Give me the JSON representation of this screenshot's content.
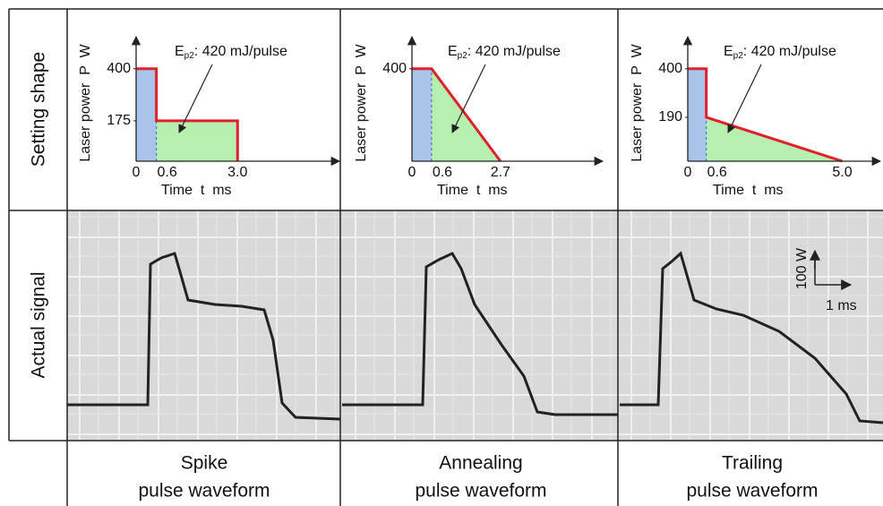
{
  "chart_data": [
    {
      "type": "line",
      "ylabel": "Laser power  P  W",
      "xlabel": "Time  t  ms",
      "annotation": {
        "symbol": "E",
        "subscript": "p2",
        "text": ": 420 mJ/pulse"
      },
      "x": [
        0,
        0.6,
        0.6,
        3,
        3
      ],
      "series": [
        {
          "color": "#e0202a",
          "values": [
            400,
            400,
            175,
            175,
            0
          ]
        }
      ],
      "xlim": [
        0,
        5.8
      ],
      "ylim": [
        0,
        500
      ],
      "xticks": [
        0,
        0.6,
        {
          "value": 3,
          "label": "3.0"
        }
      ],
      "yticks": [
        175,
        400
      ]
    },
    {
      "type": "line",
      "ylabel": "Laser power  P  W",
      "xlabel": "Time  t  ms",
      "annotation": {
        "symbol": "E",
        "subscript": "p2",
        "text": ": 420 mJ/pulse"
      },
      "x": [
        0,
        0.6,
        2.7
      ],
      "series": [
        {
          "color": "#e0202a",
          "values": [
            400,
            400,
            0
          ]
        }
      ],
      "xlim": [
        0,
        5.6
      ],
      "ylim": [
        0,
        500
      ],
      "xticks": [
        0,
        0.6,
        2.7
      ],
      "yticks": [
        400
      ]
    },
    {
      "type": "line",
      "ylabel": "Laser power  P  W",
      "xlabel": "Time  t  ms",
      "annotation": {
        "symbol": "E",
        "subscript": "p2",
        "text": ": 420 mJ/pulse"
      },
      "x": [
        0,
        0.6,
        0.6,
        5
      ],
      "series": [
        {
          "color": "#e0202a",
          "values": [
            400,
            400,
            190,
            0
          ]
        }
      ],
      "xlim": [
        0,
        6
      ],
      "ylim": [
        0,
        500
      ],
      "xticks": [
        0,
        0.6,
        {
          "value": 5,
          "label": "5.0"
        }
      ],
      "yticks": [
        190,
        400
      ]
    }
  ],
  "rows": [
    "Setting shape",
    "Actual signal"
  ],
  "columns": [
    [
      "Spike",
      "pulse waveform"
    ],
    [
      "Annealing",
      "pulse waveform"
    ],
    [
      "Trailing",
      "pulse waveform"
    ]
  ],
  "scale": {
    "power": "100 W",
    "time": "1 ms"
  }
}
